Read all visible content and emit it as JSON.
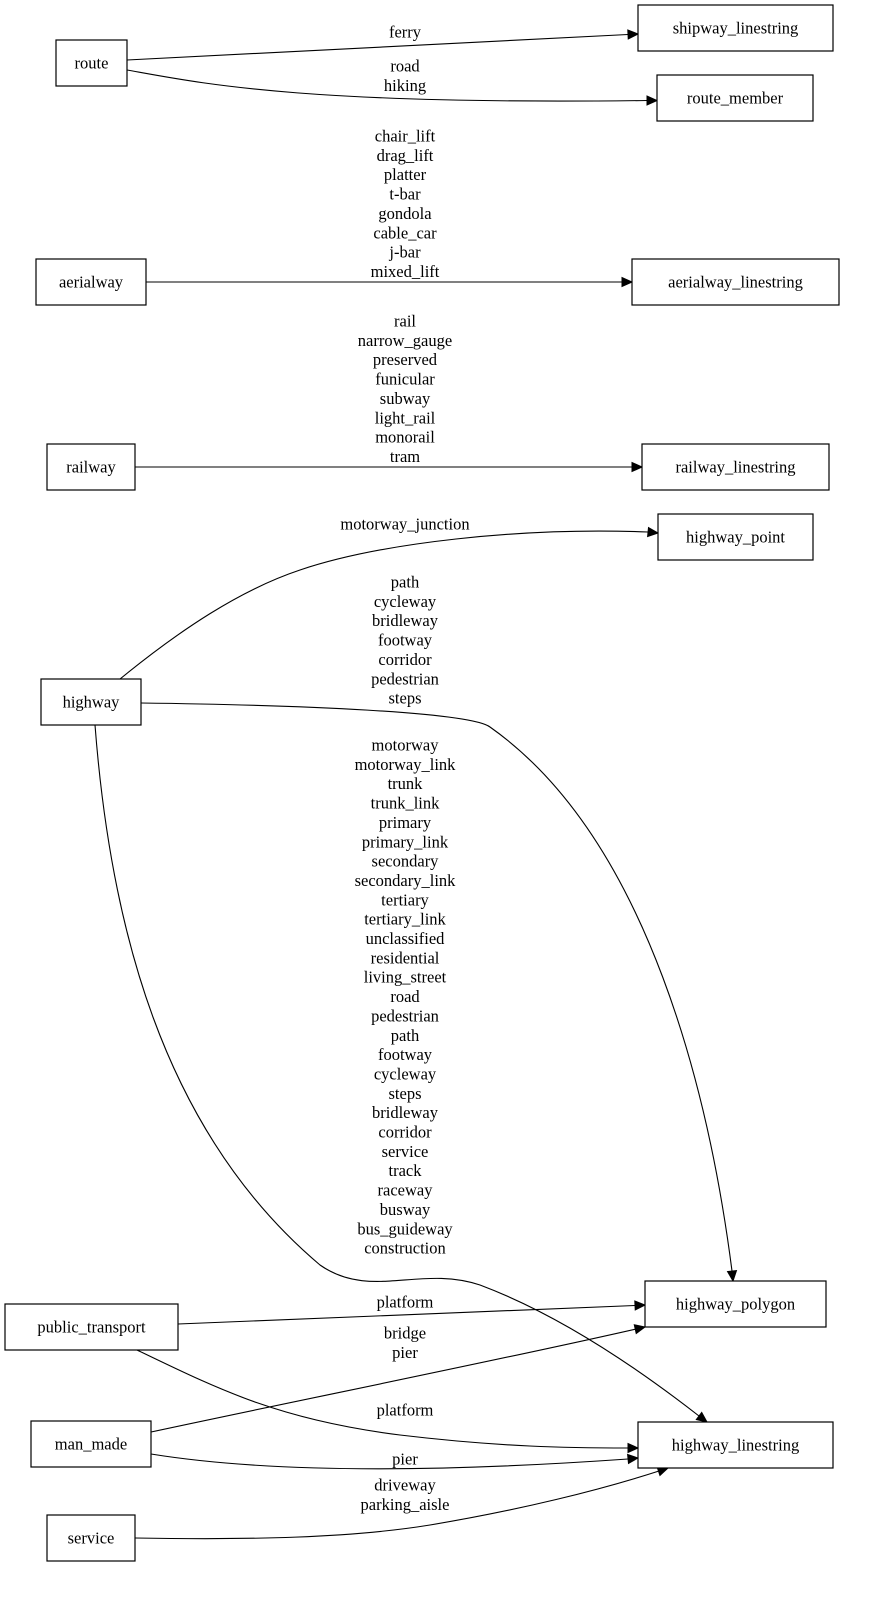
{
  "nodes": {
    "route": "route",
    "shipway_linestring": "shipway_linestring",
    "route_member": "route_member",
    "aerialway": "aerialway",
    "aerialway_linestring": "aerialway_linestring",
    "railway": "railway",
    "railway_linestring": "railway_linestring",
    "highway_point": "highway_point",
    "highway": "highway",
    "highway_polygon": "highway_polygon",
    "public_transport": "public_transport",
    "highway_linestring": "highway_linestring",
    "man_made": "man_made",
    "service": "service"
  },
  "edges": [
    {
      "from": "route",
      "to": "shipway_linestring",
      "labels": [
        "ferry"
      ]
    },
    {
      "from": "route",
      "to": "route_member",
      "labels": [
        "road",
        "hiking"
      ]
    },
    {
      "from": "aerialway",
      "to": "aerialway_linestring",
      "labels": [
        "chair_lift",
        "drag_lift",
        "platter",
        "t-bar",
        "gondola",
        "cable_car",
        "j-bar",
        "mixed_lift"
      ]
    },
    {
      "from": "railway",
      "to": "railway_linestring",
      "labels": [
        "rail",
        "narrow_gauge",
        "preserved",
        "funicular",
        "subway",
        "light_rail",
        "monorail",
        "tram"
      ]
    },
    {
      "from": "highway",
      "to": "highway_point",
      "labels": [
        "motorway_junction"
      ]
    },
    {
      "from": "highway",
      "to": "highway_polygon",
      "labels": [
        "path",
        "cycleway",
        "bridleway",
        "footway",
        "corridor",
        "pedestrian",
        "steps"
      ]
    },
    {
      "from": "highway",
      "to": "highway_linestring",
      "labels": [
        "motorway",
        "motorway_link",
        "trunk",
        "trunk_link",
        "primary",
        "primary_link",
        "secondary",
        "secondary_link",
        "tertiary",
        "tertiary_link",
        "unclassified",
        "residential",
        "living_street",
        "road",
        "pedestrian",
        "path",
        "footway",
        "cycleway",
        "steps",
        "bridleway",
        "corridor",
        "service",
        "track",
        "raceway",
        "busway",
        "bus_guideway",
        "construction"
      ]
    },
    {
      "from": "public_transport",
      "to": "highway_polygon",
      "labels": [
        "platform"
      ]
    },
    {
      "from": "man_made",
      "to": "highway_polygon",
      "labels": [
        "bridge",
        "pier"
      ]
    },
    {
      "from": "public_transport",
      "to": "highway_linestring",
      "labels": [
        "platform"
      ]
    },
    {
      "from": "man_made",
      "to": "highway_linestring",
      "labels": [
        "pier"
      ]
    },
    {
      "from": "service",
      "to": "highway_linestring",
      "labels": [
        "driveway",
        "parking_aisle"
      ]
    }
  ]
}
